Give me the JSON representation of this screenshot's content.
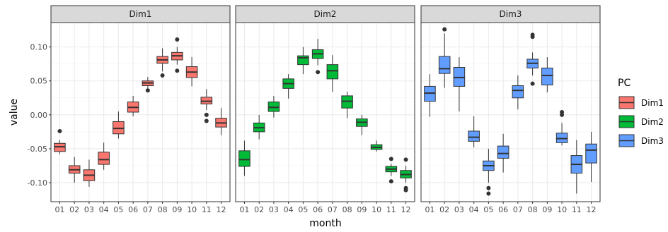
{
  "chart_data": {
    "type": "boxplot",
    "xlabel": "month",
    "ylabel": "value",
    "ylim": [
      -0.128,
      0.136
    ],
    "yticks": [
      -0.1,
      -0.05,
      0.0,
      0.05,
      0.1
    ],
    "ytick_labels": [
      "-0.10",
      "-0.05",
      "0.00",
      "0.05",
      "0.10"
    ],
    "categories": [
      "01",
      "02",
      "03",
      "04",
      "05",
      "06",
      "07",
      "08",
      "09",
      "10",
      "11",
      "12"
    ],
    "legend": {
      "title": "PC",
      "position": "right",
      "entries": [
        "Dim1",
        "Dim2",
        "Dim3"
      ]
    },
    "colors": {
      "Dim1": "#F8766D",
      "Dim2": "#00BA38",
      "Dim3": "#619CFF"
    },
    "grid": true,
    "panels": [
      {
        "name": "Dim1",
        "boxes": [
          {
            "q1": -0.054,
            "median": -0.047,
            "q3": -0.042,
            "whisker_low": -0.058,
            "whisker_high": -0.037,
            "outliers": [
              -0.024
            ]
          },
          {
            "q1": -0.086,
            "median": -0.081,
            "q3": -0.075,
            "whisker_low": -0.1,
            "whisker_high": -0.062,
            "outliers": []
          },
          {
            "q1": -0.097,
            "median": -0.089,
            "q3": -0.081,
            "whisker_low": -0.106,
            "whisker_high": -0.066,
            "outliers": []
          },
          {
            "q1": -0.073,
            "median": -0.066,
            "q3": -0.055,
            "whisker_low": -0.081,
            "whisker_high": -0.041,
            "outliers": []
          },
          {
            "q1": -0.028,
            "median": -0.02,
            "q3": -0.01,
            "whisker_low": -0.035,
            "whisker_high": 0.005,
            "outliers": []
          },
          {
            "q1": 0.004,
            "median": 0.011,
            "q3": 0.019,
            "whisker_low": -0.002,
            "whisker_high": 0.028,
            "outliers": []
          },
          {
            "q1": 0.043,
            "median": 0.047,
            "q3": 0.05,
            "whisker_low": 0.038,
            "whisker_high": 0.056,
            "outliers": [
              0.036
            ]
          },
          {
            "q1": 0.076,
            "median": 0.081,
            "q3": 0.086,
            "whisker_low": 0.064,
            "whisker_high": 0.098,
            "outliers": [
              0.058
            ]
          },
          {
            "q1": 0.081,
            "median": 0.087,
            "q3": 0.092,
            "whisker_low": 0.074,
            "whisker_high": 0.1,
            "outliers": [
              0.111,
              0.065
            ]
          },
          {
            "q1": 0.055,
            "median": 0.063,
            "q3": 0.071,
            "whisker_low": 0.042,
            "whisker_high": 0.085,
            "outliers": []
          },
          {
            "q1": 0.016,
            "median": 0.02,
            "q3": 0.026,
            "whisker_low": 0.007,
            "whisker_high": 0.038,
            "outliers": [
              0.0,
              -0.009
            ]
          },
          {
            "q1": -0.018,
            "median": -0.012,
            "q3": -0.005,
            "whisker_low": -0.03,
            "whisker_high": 0.01,
            "outliers": []
          }
        ]
      },
      {
        "name": "Dim2",
        "boxes": [
          {
            "q1": -0.076,
            "median": -0.066,
            "q3": -0.053,
            "whisker_low": -0.09,
            "whisker_high": -0.038,
            "outliers": []
          },
          {
            "q1": -0.025,
            "median": -0.019,
            "q3": -0.012,
            "whisker_low": -0.036,
            "whisker_high": 0.0,
            "outliers": []
          },
          {
            "q1": 0.005,
            "median": 0.011,
            "q3": 0.019,
            "whisker_low": -0.004,
            "whisker_high": 0.028,
            "outliers": []
          },
          {
            "q1": 0.039,
            "median": 0.046,
            "q3": 0.053,
            "whisker_low": 0.024,
            "whisker_high": 0.06,
            "outliers": []
          },
          {
            "q1": 0.074,
            "median": 0.084,
            "q3": 0.087,
            "whisker_low": 0.06,
            "whisker_high": 0.1,
            "outliers": []
          },
          {
            "q1": 0.083,
            "median": 0.09,
            "q3": 0.096,
            "whisker_low": 0.073,
            "whisker_high": 0.112,
            "outliers": [
              0.063
            ]
          },
          {
            "q1": 0.053,
            "median": 0.065,
            "q3": 0.074,
            "whisker_low": 0.034,
            "whisker_high": 0.088,
            "outliers": []
          },
          {
            "q1": 0.01,
            "median": 0.02,
            "q3": 0.028,
            "whisker_low": -0.005,
            "whisker_high": 0.034,
            "outliers": []
          },
          {
            "q1": -0.017,
            "median": -0.011,
            "q3": -0.006,
            "whisker_low": -0.03,
            "whisker_high": 0.0,
            "outliers": []
          },
          {
            "q1": -0.051,
            "median": -0.048,
            "q3": -0.044,
            "whisker_low": -0.054,
            "whisker_high": -0.038,
            "outliers": []
          },
          {
            "q1": -0.084,
            "median": -0.08,
            "q3": -0.076,
            "whisker_low": -0.09,
            "whisker_high": -0.072,
            "outliers": [
              -0.065,
              -0.098
            ]
          },
          {
            "q1": -0.093,
            "median": -0.088,
            "q3": -0.082,
            "whisker_low": -0.1,
            "whisker_high": -0.075,
            "outliers": [
              -0.066,
              -0.108,
              -0.111
            ]
          }
        ]
      },
      {
        "name": "Dim3",
        "boxes": [
          {
            "q1": 0.02,
            "median": 0.032,
            "q3": 0.042,
            "whisker_low": -0.003,
            "whisker_high": 0.06,
            "outliers": []
          },
          {
            "q1": 0.061,
            "median": 0.068,
            "q3": 0.086,
            "whisker_low": 0.04,
            "whisker_high": 0.12,
            "outliers": [
              0.126
            ]
          },
          {
            "q1": 0.042,
            "median": 0.055,
            "q3": 0.07,
            "whisker_low": 0.005,
            "whisker_high": 0.085,
            "outliers": []
          },
          {
            "q1": -0.039,
            "median": -0.033,
            "q3": -0.024,
            "whisker_low": -0.048,
            "whisker_high": -0.002,
            "outliers": []
          },
          {
            "q1": -0.082,
            "median": -0.075,
            "q3": -0.068,
            "whisker_low": -0.1,
            "whisker_high": -0.05,
            "outliers": [
              -0.108,
              -0.116
            ]
          },
          {
            "q1": -0.064,
            "median": -0.057,
            "q3": -0.046,
            "whisker_low": -0.085,
            "whisker_high": -0.028,
            "outliers": []
          },
          {
            "q1": 0.025,
            "median": 0.036,
            "q3": 0.043,
            "whisker_low": 0.008,
            "whisker_high": 0.058,
            "outliers": []
          },
          {
            "q1": 0.069,
            "median": 0.076,
            "q3": 0.082,
            "whisker_low": 0.058,
            "whisker_high": 0.092,
            "outliers": [
              0.118,
              0.115,
              0.046
            ]
          },
          {
            "q1": 0.044,
            "median": 0.058,
            "q3": 0.069,
            "whisker_low": 0.033,
            "whisker_high": 0.085,
            "outliers": []
          },
          {
            "q1": -0.041,
            "median": -0.035,
            "q3": -0.027,
            "whisker_low": -0.045,
            "whisker_high": -0.012,
            "outliers": [
              0.004,
              0.0
            ]
          },
          {
            "q1": -0.086,
            "median": -0.073,
            "q3": -0.06,
            "whisker_low": -0.116,
            "whisker_high": -0.037,
            "outliers": []
          },
          {
            "q1": -0.071,
            "median": -0.052,
            "q3": -0.043,
            "whisker_low": -0.099,
            "whisker_high": -0.025,
            "outliers": []
          }
        ]
      }
    ]
  }
}
